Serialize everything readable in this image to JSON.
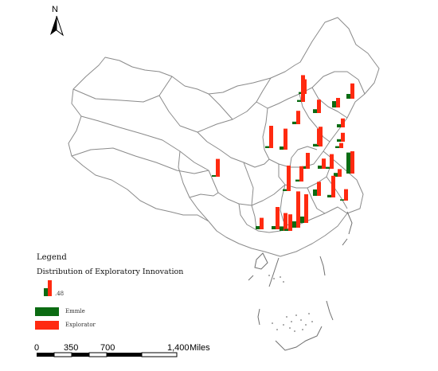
{
  "north_label": "N",
  "legend": {
    "title": "Legend",
    "subtitle": "Distribution of Exploratory Innovation",
    "sample_value": ".48",
    "series": [
      {
        "name": "Emmle",
        "color": "#0b6b12"
      },
      {
        "name": "Explorator",
        "color": "#ff2a10"
      }
    ]
  },
  "scale_bar": {
    "labels": [
      "0",
      "350",
      "700",
      "1,400"
    ],
    "unit": "Miles"
  },
  "colors": {
    "sample": "#0b6b12",
    "exploratory": "#ff2a10",
    "boundary": "#8a8a8a"
  },
  "chart_data": {
    "type": "bar",
    "series": [
      {
        "name": "Emmle",
        "color": "#0b6b12"
      },
      {
        "name": "Explorator",
        "color": "#ff2a10"
      }
    ],
    "reference_value": 0.48,
    "provinces": [
      {
        "id": "heilongjiang-n",
        "green": 0.15,
        "red": 0.48
      },
      {
        "id": "heilongjiang-s",
        "green": 0.1,
        "red": 0.28
      },
      {
        "id": "jilin",
        "green": 0.2,
        "red": 0.3
      },
      {
        "id": "liaoning",
        "green": 0.12,
        "red": 0.42
      },
      {
        "id": "beijing",
        "green": 0.06,
        "red": 0.46
      },
      {
        "id": "tianjin",
        "green": 0.08,
        "red": 0.42
      },
      {
        "id": "hebei",
        "green": 0.1,
        "red": 0.66
      },
      {
        "id": "shanxi",
        "green": 0.06,
        "red": 0.7
      },
      {
        "id": "shandong",
        "green": 0.08,
        "red": 0.56
      },
      {
        "id": "shandong-e",
        "green": 0.06,
        "red": 0.16
      },
      {
        "id": "shaanxi",
        "green": 0.05,
        "red": 0.56
      },
      {
        "id": "henan",
        "green": 0.08,
        "red": 0.5
      },
      {
        "id": "jiangsu",
        "green": 0.1,
        "red": 0.32
      },
      {
        "id": "anhui",
        "green": 0.06,
        "red": 0.46
      },
      {
        "id": "shanghai",
        "green": 0.66,
        "red": 0.7
      },
      {
        "id": "jiangsu-s",
        "green": 0.12,
        "red": 0.24
      },
      {
        "id": "hubei",
        "green": 0.06,
        "red": 0.8
      },
      {
        "id": "zhejiang",
        "green": 0.2,
        "red": 0.44
      },
      {
        "id": "zhejiang-e",
        "green": 0.08,
        "red": 0.68
      },
      {
        "id": "jiangxi-n",
        "green": 0.04,
        "red": 0.36
      },
      {
        "id": "fujian",
        "green": 0.06,
        "red": 0.48
      },
      {
        "id": "chongqing",
        "green": 0.06,
        "red": 0.84
      },
      {
        "id": "sichuan",
        "green": 0.05,
        "red": 0.62
      },
      {
        "id": "hunan",
        "green": 0.1,
        "red": 0.7
      },
      {
        "id": "jiangxi",
        "green": 0.2,
        "red": 1.14
      },
      {
        "id": "guangxi",
        "green": 0.1,
        "red": 0.36
      },
      {
        "id": "guangdong-w",
        "green": 0.14,
        "red": 0.56
      },
      {
        "id": "guangdong",
        "green": 0.2,
        "red": 0.9
      },
      {
        "id": "guangdong-e",
        "green": 0.06,
        "red": 0.52
      },
      {
        "id": "fujian-s",
        "green": 0.08,
        "red": 0.28
      }
    ]
  }
}
